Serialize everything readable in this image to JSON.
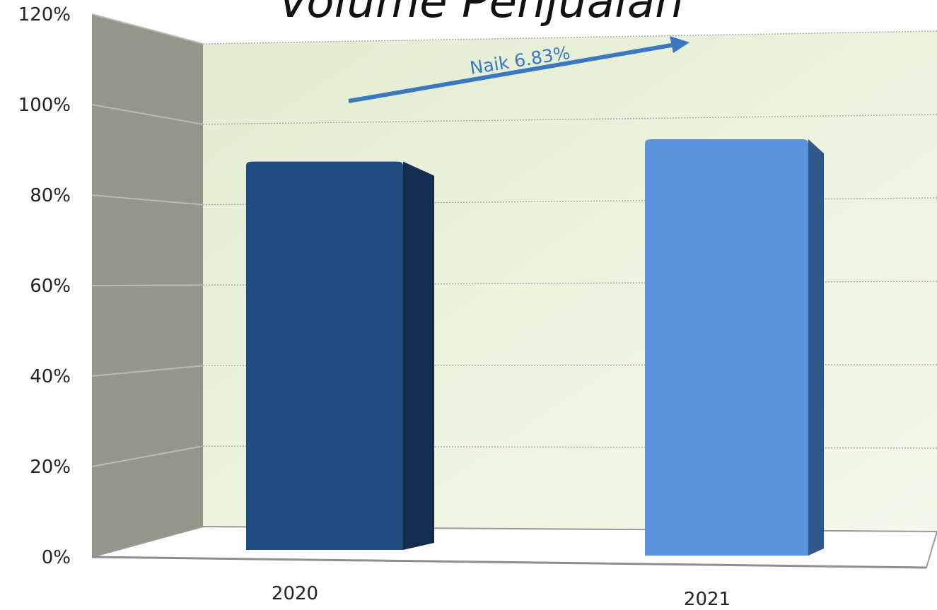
{
  "chart_data": {
    "type": "bar",
    "title": "Volume Penjualan",
    "categories": [
      "2020",
      "2021"
    ],
    "values": [
      97,
      104
    ],
    "colors": [
      "#214a7f",
      "#5b93db"
    ],
    "side_colors": [
      "#142c4d",
      "#30588a"
    ],
    "y_ticks": [
      "0%",
      "20%",
      "40%",
      "60%",
      "80%",
      "100%",
      "120%"
    ],
    "ylim": [
      0,
      120
    ],
    "grid": true,
    "legend": "none",
    "annotation": "Naik 6.83%"
  }
}
